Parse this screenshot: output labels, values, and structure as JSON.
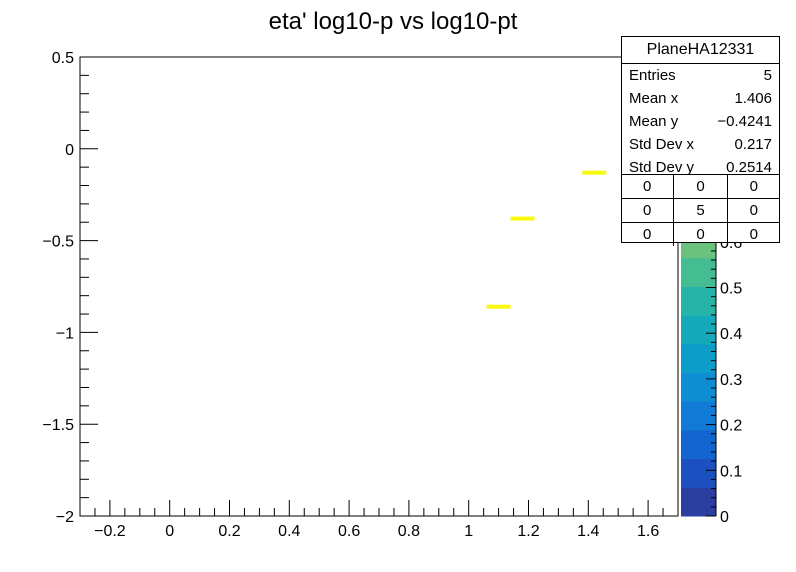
{
  "chart_data": {
    "type": "heatmap",
    "title": "eta'  log10-p vs log10-pt",
    "xlabel": "",
    "ylabel": "",
    "xlim": [
      -0.3,
      1.7
    ],
    "ylim": [
      -2,
      0.5
    ],
    "x_ticks": [
      -0.2,
      0,
      0.2,
      0.4,
      0.6,
      0.8,
      1,
      1.2,
      1.4,
      1.6
    ],
    "x_tick_labels": [
      "−0.2",
      "0",
      "0.2",
      "0.4",
      "0.6",
      "0.8",
      "1",
      "1.2",
      "1.4",
      "1.6"
    ],
    "y_ticks": [
      0.5,
      0,
      -0.5,
      -1,
      -1.5,
      -2
    ],
    "y_tick_labels": [
      "0.5",
      "0",
      "−0.5",
      "−1",
      "−1.5",
      "−2"
    ],
    "z_range": [
      0,
      1
    ],
    "z_ticks": [
      0,
      0.1,
      0.2,
      0.3,
      0.4,
      0.5,
      0.6
    ],
    "z_tick_labels": [
      "0",
      "0.1",
      "0.2",
      "0.3",
      "0.4",
      "0.5",
      "0.6"
    ],
    "bins": [
      {
        "x0": 1.06,
        "x1": 1.14,
        "y": -0.86,
        "z": 1
      },
      {
        "x0": 1.14,
        "x1": 1.22,
        "y": -0.38,
        "z": 1
      },
      {
        "x0": 1.38,
        "x1": 1.46,
        "y": -0.13,
        "z": 1
      },
      {
        "x0": 1.62,
        "x1": 1.7,
        "y": -0.5,
        "z": 1
      }
    ],
    "colors": {
      "bin": "#f9f90e",
      "palette": [
        "#2a3fa0",
        "#1c4fbf",
        "#1565d0",
        "#117ad7",
        "#0e8dd3",
        "#0d9dc9",
        "#14a9bb",
        "#27b4a8",
        "#44bd93",
        "#6ac27d",
        "#8ec66a",
        "#b0c65e",
        "#cfc65a",
        "#e6c95a",
        "#f4d34f",
        "#f9e43a"
      ]
    },
    "grid": false,
    "legend": "stats box top-right"
  },
  "stats": {
    "title": "PlaneHA12331",
    "rows": [
      {
        "label": "Entries",
        "value": "5"
      },
      {
        "label": "Mean x",
        "value": "1.406"
      },
      {
        "label": "Mean y",
        "value": "−0.4241"
      },
      {
        "label": "Std Dev x",
        "value": "0.217"
      },
      {
        "label": "Std Dev y",
        "value": "0.2514"
      }
    ],
    "grid": [
      [
        "0",
        "0",
        "0"
      ],
      [
        "0",
        "5",
        "0"
      ],
      [
        "0",
        "0",
        "0"
      ]
    ]
  }
}
